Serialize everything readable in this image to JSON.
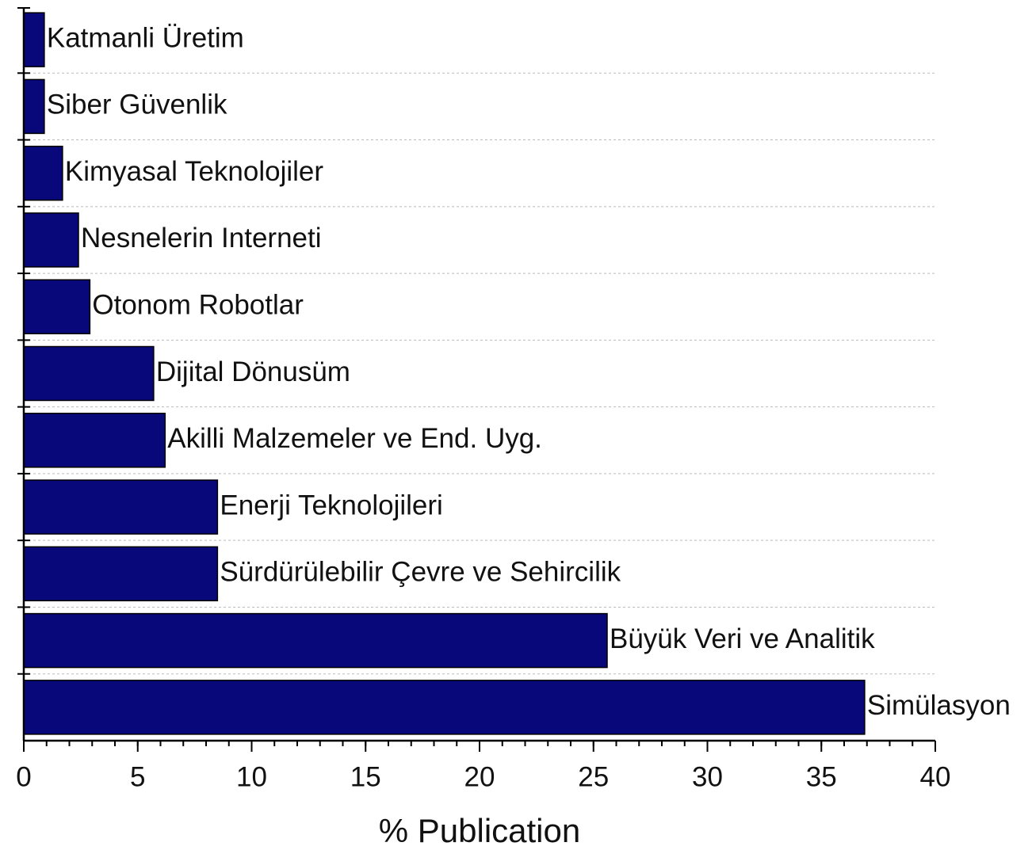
{
  "chart_data": {
    "type": "barh",
    "xlabel": "% Publication",
    "categories": [
      "Katmanli Üretim",
      "Siber Güvenlik",
      "Kimyasal Teknolojiler",
      "Nesnelerin Interneti",
      "Otonom Robotlar",
      "Dijital Dönusüm",
      "Akilli Malzemeler ve End. Uyg.",
      "Enerji Teknolojileri",
      "Sürdürülebilir Çevre ve Sehircilik",
      "Büyük Veri ve Analitik",
      "Simülasyon"
    ],
    "values": [
      0.9,
      0.9,
      1.7,
      2.4,
      2.9,
      5.7,
      6.2,
      8.5,
      8.5,
      25.6,
      36.9
    ],
    "color": "#08087a",
    "xlim": [
      0,
      40
    ],
    "xticks": [
      0,
      5,
      10,
      15,
      20,
      25,
      30,
      35,
      40
    ],
    "xminor_step": 1,
    "grid": true
  }
}
